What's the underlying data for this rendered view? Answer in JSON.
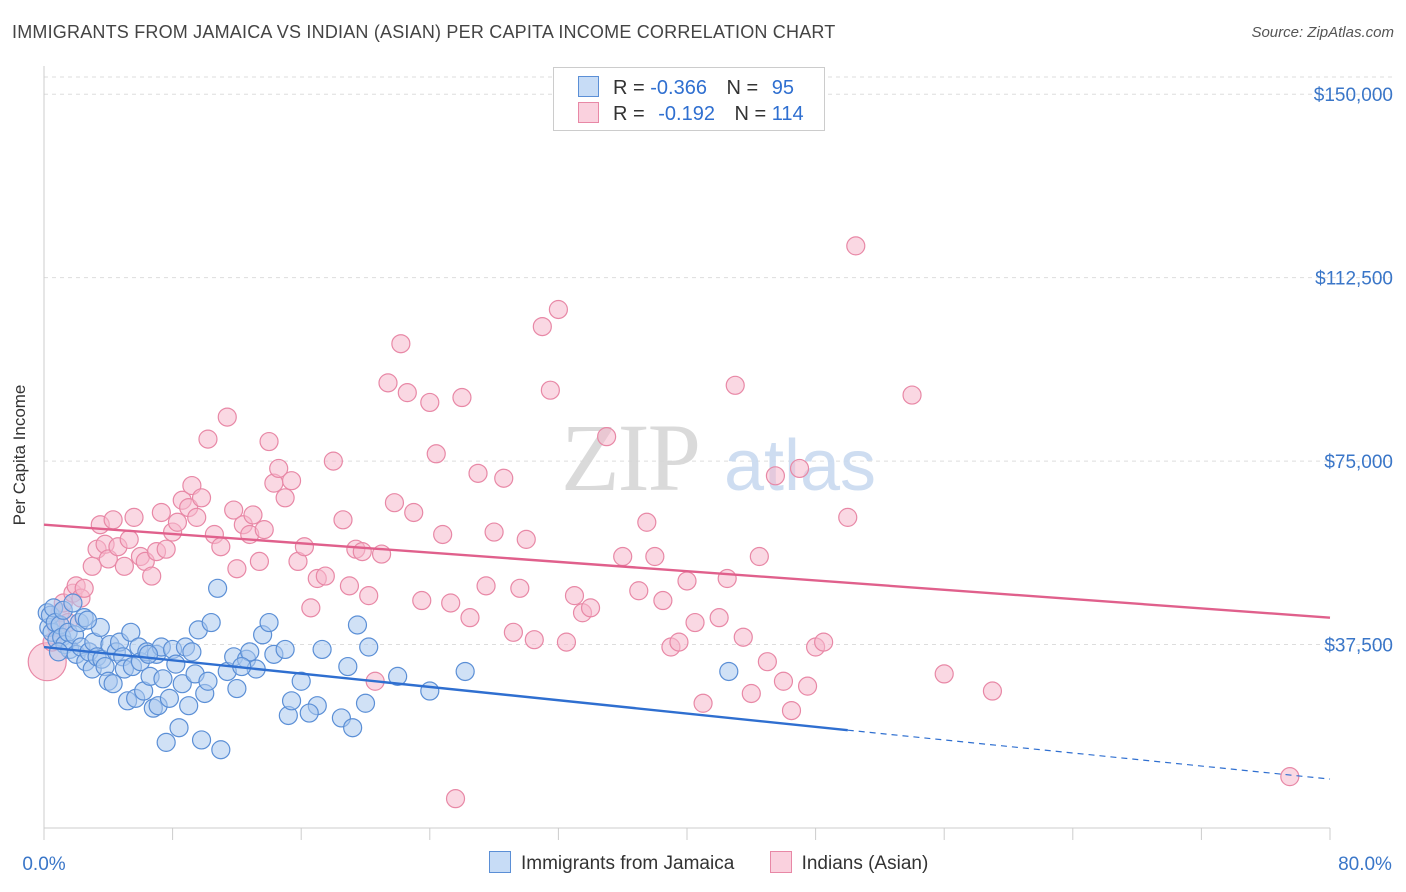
{
  "title": "IMMIGRANTS FROM JAMAICA VS INDIAN (ASIAN) PER CAPITA INCOME CORRELATION CHART",
  "source": "Source: ZipAtlas.com",
  "watermark": {
    "zip": "ZIP",
    "atlas": "atlas"
  },
  "legend_top": [
    {
      "r_label": "R =",
      "r_value": "-0.366",
      "n_label": "N =",
      "n_value": "95"
    },
    {
      "r_label": "R =",
      "r_value": "-0.192",
      "n_label": "N =",
      "n_value": "114"
    }
  ],
  "colors": {
    "blue_fill": "#aac8ef",
    "blue_stroke": "#5b8fd6",
    "blue_line": "#2f6fd0",
    "pink_fill": "#f5b8cc",
    "pink_stroke": "#e888a6",
    "pink_line": "#e0608c",
    "axis_label": "#3a76c8",
    "grid": "#dddddd"
  },
  "chart_data": {
    "type": "scatter",
    "title": "IMMIGRANTS FROM JAMAICA VS INDIAN (ASIAN) PER CAPITA INCOME CORRELATION CHART",
    "xlabel": "",
    "ylabel": "Per Capita Income",
    "xlim": [
      0,
      80
    ],
    "ylim": [
      0,
      157000
    ],
    "x_tick_labels": [
      "0.0%",
      "80.0%"
    ],
    "y_ticks": [
      37500,
      75000,
      112500,
      150000
    ],
    "y_tick_labels": [
      "$37,500",
      "$75,000",
      "$112,500",
      "$150,000"
    ],
    "grid": true,
    "legend_position": "bottom",
    "series": [
      {
        "name": "Immigrants from Jamaica",
        "color": "#5b8fd6",
        "r": -0.366,
        "n": 95,
        "trend": {
          "x0": 0.0,
          "y0": 37000,
          "x1": 50.0,
          "y1": 20000,
          "dash_to_x": 80.0,
          "dash_to_y": 10000
        },
        "points": [
          [
            0.2,
            44000
          ],
          [
            0.3,
            41000
          ],
          [
            0.4,
            43500
          ],
          [
            0.5,
            40000
          ],
          [
            0.6,
            45000
          ],
          [
            0.7,
            42000
          ],
          [
            0.8,
            38500
          ],
          [
            1.0,
            41500
          ],
          [
            1.1,
            39000
          ],
          [
            1.2,
            44500
          ],
          [
            1.3,
            37500
          ],
          [
            1.5,
            40000
          ],
          [
            1.6,
            36500
          ],
          [
            1.8,
            46000
          ],
          [
            1.9,
            39500
          ],
          [
            2.0,
            35500
          ],
          [
            2.2,
            42000
          ],
          [
            2.3,
            37000
          ],
          [
            2.5,
            43000
          ],
          [
            2.6,
            34000
          ],
          [
            2.8,
            36000
          ],
          [
            3.0,
            32500
          ],
          [
            3.1,
            38000
          ],
          [
            3.3,
            35000
          ],
          [
            3.5,
            41000
          ],
          [
            3.6,
            34500
          ],
          [
            3.8,
            33000
          ],
          [
            4.0,
            30000
          ],
          [
            4.1,
            37500
          ],
          [
            4.3,
            29500
          ],
          [
            4.5,
            36000
          ],
          [
            4.7,
            38000
          ],
          [
            4.9,
            35000
          ],
          [
            5.0,
            32500
          ],
          [
            5.2,
            26000
          ],
          [
            5.4,
            40000
          ],
          [
            5.5,
            33000
          ],
          [
            5.7,
            26500
          ],
          [
            5.9,
            37000
          ],
          [
            6.0,
            34000
          ],
          [
            6.2,
            28000
          ],
          [
            6.4,
            36000
          ],
          [
            6.6,
            31000
          ],
          [
            6.8,
            24500
          ],
          [
            7.0,
            35500
          ],
          [
            7.1,
            25000
          ],
          [
            7.3,
            37000
          ],
          [
            7.4,
            30500
          ],
          [
            7.6,
            17500
          ],
          [
            7.8,
            26500
          ],
          [
            8.0,
            36500
          ],
          [
            8.2,
            33500
          ],
          [
            8.4,
            20500
          ],
          [
            8.6,
            29500
          ],
          [
            8.8,
            37000
          ],
          [
            9.0,
            25000
          ],
          [
            9.2,
            36000
          ],
          [
            9.4,
            31500
          ],
          [
            9.6,
            40500
          ],
          [
            9.8,
            18000
          ],
          [
            10.0,
            27500
          ],
          [
            10.2,
            30000
          ],
          [
            10.4,
            42000
          ],
          [
            10.8,
            49000
          ],
          [
            11.0,
            16000
          ],
          [
            11.4,
            32000
          ],
          [
            11.8,
            35000
          ],
          [
            12.0,
            28500
          ],
          [
            12.6,
            34500
          ],
          [
            12.8,
            36000
          ],
          [
            13.2,
            32500
          ],
          [
            13.6,
            39500
          ],
          [
            14.0,
            42000
          ],
          [
            14.3,
            35500
          ],
          [
            15.0,
            36500
          ],
          [
            15.2,
            23000
          ],
          [
            15.4,
            26000
          ],
          [
            16.0,
            30000
          ],
          [
            17.0,
            25000
          ],
          [
            17.3,
            36500
          ],
          [
            18.5,
            22500
          ],
          [
            18.9,
            33000
          ],
          [
            19.2,
            20500
          ],
          [
            19.5,
            41500
          ],
          [
            20.0,
            25500
          ],
          [
            20.2,
            37000
          ],
          [
            22.0,
            31000
          ],
          [
            24.0,
            28000
          ],
          [
            26.2,
            32000
          ],
          [
            42.6,
            32000
          ],
          [
            0.9,
            36000
          ],
          [
            2.7,
            42500
          ],
          [
            6.5,
            35500
          ],
          [
            12.3,
            33000
          ],
          [
            16.5,
            23500
          ]
        ]
      },
      {
        "name": "Indians (Asian)",
        "color": "#e888a6",
        "r": -0.192,
        "n": 114,
        "trend": {
          "x0": 0.0,
          "y0": 62000,
          "x1": 80.0,
          "y1": 43000
        },
        "points": [
          [
            0.2,
            34000
          ],
          [
            0.5,
            38000
          ],
          [
            0.8,
            41000
          ],
          [
            1.0,
            44000
          ],
          [
            1.2,
            46000
          ],
          [
            1.5,
            42000
          ],
          [
            1.8,
            48000
          ],
          [
            2.0,
            49500
          ],
          [
            2.3,
            47000
          ],
          [
            2.5,
            49000
          ],
          [
            3.0,
            53500
          ],
          [
            3.3,
            57000
          ],
          [
            3.5,
            62000
          ],
          [
            3.8,
            58000
          ],
          [
            4.0,
            55000
          ],
          [
            4.3,
            63000
          ],
          [
            4.6,
            57500
          ],
          [
            5.0,
            53500
          ],
          [
            5.3,
            59000
          ],
          [
            5.6,
            63500
          ],
          [
            6.0,
            55500
          ],
          [
            6.3,
            54500
          ],
          [
            6.7,
            51500
          ],
          [
            7.0,
            56500
          ],
          [
            7.3,
            64500
          ],
          [
            7.6,
            57000
          ],
          [
            8.0,
            60500
          ],
          [
            8.3,
            62500
          ],
          [
            8.6,
            67000
          ],
          [
            9.0,
            65500
          ],
          [
            9.2,
            70000
          ],
          [
            9.5,
            63500
          ],
          [
            9.8,
            67500
          ],
          [
            10.2,
            79500
          ],
          [
            10.6,
            60000
          ],
          [
            11.0,
            57500
          ],
          [
            11.4,
            84000
          ],
          [
            11.8,
            65000
          ],
          [
            12.0,
            53000
          ],
          [
            12.4,
            62000
          ],
          [
            12.8,
            60000
          ],
          [
            13.0,
            64000
          ],
          [
            13.4,
            54500
          ],
          [
            13.7,
            61000
          ],
          [
            14.0,
            79000
          ],
          [
            14.3,
            70500
          ],
          [
            14.6,
            73500
          ],
          [
            15.0,
            67500
          ],
          [
            15.4,
            71000
          ],
          [
            15.8,
            54500
          ],
          [
            16.2,
            57500
          ],
          [
            16.6,
            45000
          ],
          [
            17.0,
            51000
          ],
          [
            17.5,
            51500
          ],
          [
            18.0,
            75000
          ],
          [
            18.6,
            63000
          ],
          [
            19.0,
            49500
          ],
          [
            19.4,
            57000
          ],
          [
            19.8,
            56500
          ],
          [
            20.2,
            47500
          ],
          [
            20.6,
            30000
          ],
          [
            21.0,
            56000
          ],
          [
            21.4,
            91000
          ],
          [
            21.8,
            66500
          ],
          [
            22.2,
            99000
          ],
          [
            22.6,
            89000
          ],
          [
            23.0,
            64500
          ],
          [
            23.5,
            46500
          ],
          [
            24.0,
            87000
          ],
          [
            24.4,
            76500
          ],
          [
            24.8,
            60000
          ],
          [
            25.3,
            46000
          ],
          [
            25.6,
            6000
          ],
          [
            26.0,
            88000
          ],
          [
            26.5,
            43000
          ],
          [
            27.0,
            72500
          ],
          [
            27.5,
            49500
          ],
          [
            28.0,
            60500
          ],
          [
            28.6,
            71500
          ],
          [
            29.2,
            40000
          ],
          [
            29.6,
            49000
          ],
          [
            30.0,
            59000
          ],
          [
            30.5,
            38500
          ],
          [
            31.0,
            102500
          ],
          [
            31.5,
            89500
          ],
          [
            32.0,
            106000
          ],
          [
            32.5,
            38000
          ],
          [
            33.0,
            47500
          ],
          [
            33.5,
            44000
          ],
          [
            34.0,
            45000
          ],
          [
            35.0,
            80000
          ],
          [
            36.0,
            55500
          ],
          [
            37.0,
            48500
          ],
          [
            37.5,
            62500
          ],
          [
            38.0,
            55500
          ],
          [
            38.5,
            46500
          ],
          [
            39.0,
            37000
          ],
          [
            39.5,
            38000
          ],
          [
            40.0,
            50500
          ],
          [
            40.5,
            42000
          ],
          [
            41.0,
            25500
          ],
          [
            42.0,
            43000
          ],
          [
            42.5,
            51000
          ],
          [
            43.0,
            90500
          ],
          [
            43.5,
            39000
          ],
          [
            44.0,
            27500
          ],
          [
            44.5,
            55500
          ],
          [
            45.0,
            34000
          ],
          [
            45.5,
            72000
          ],
          [
            46.0,
            30000
          ],
          [
            46.5,
            24000
          ],
          [
            47.0,
            73500
          ],
          [
            47.5,
            29000
          ],
          [
            48.0,
            37000
          ],
          [
            48.5,
            38000
          ],
          [
            50.0,
            63500
          ],
          [
            50.5,
            119000
          ],
          [
            54.0,
            88500
          ],
          [
            56.0,
            31500
          ],
          [
            59.0,
            28000
          ],
          [
            77.5,
            10500
          ]
        ]
      }
    ]
  },
  "axis": {
    "y_label": "Per Capita Income",
    "y_ticks": [
      "$37,500",
      "$75,000",
      "$112,500",
      "$150,000"
    ],
    "x_min_label": "0.0%",
    "x_max_label": "80.0%"
  },
  "legend_bottom": [
    {
      "label": "Immigrants from Jamaica"
    },
    {
      "label": "Indians (Asian)"
    }
  ]
}
